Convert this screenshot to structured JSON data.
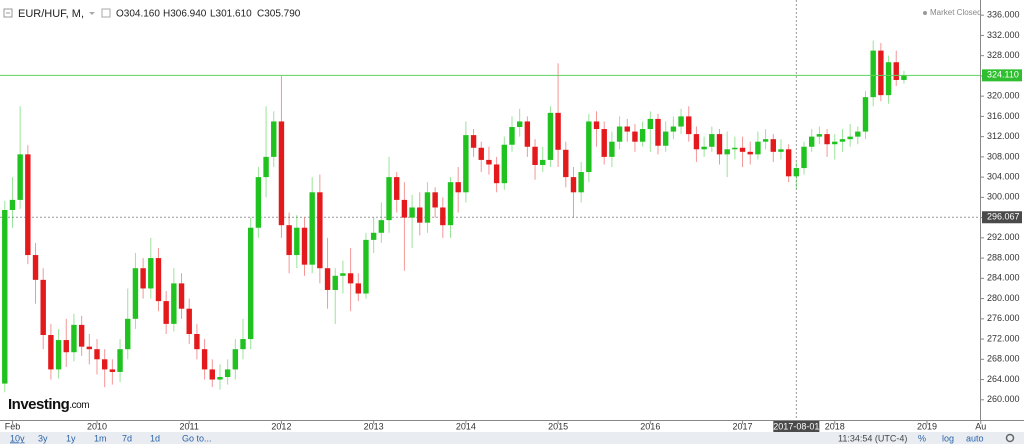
{
  "chart_data": {
    "type": "candlestick",
    "symbol": "EUR/HUF, M,",
    "ohlc_legend": [
      "O304.160",
      "H306.940",
      "L301.610",
      "C305.790"
    ],
    "status": "Market Closed",
    "brand": "Investing",
    "brand_suffix": ".com",
    "up_color": "#1fc21f",
    "down_color": "#e3191b",
    "categories": [
      "2009-01",
      "2009-02",
      "2009-03",
      "2009-04",
      "2009-05",
      "2009-06",
      "2009-07",
      "2009-08",
      "2009-09",
      "2009-10",
      "2009-11",
      "2009-12",
      "2010-01",
      "2010-02",
      "2010-03",
      "2010-04",
      "2010-05",
      "2010-06",
      "2010-07",
      "2010-08",
      "2010-09",
      "2010-10",
      "2010-11",
      "2010-12",
      "2011-01",
      "2011-02",
      "2011-03",
      "2011-04",
      "2011-05",
      "2011-06",
      "2011-07",
      "2011-08",
      "2011-09",
      "2011-10",
      "2011-11",
      "2011-12",
      "2012-01",
      "2012-02",
      "2012-03",
      "2012-04",
      "2012-05",
      "2012-06",
      "2012-07",
      "2012-08",
      "2012-09",
      "2012-10",
      "2012-11",
      "2012-12",
      "2013-01",
      "2013-02",
      "2013-03",
      "2013-04",
      "2013-05",
      "2013-06",
      "2013-07",
      "2013-08",
      "2013-09",
      "2013-10",
      "2013-11",
      "2013-12",
      "2014-01",
      "2014-02",
      "2014-03",
      "2014-04",
      "2014-05",
      "2014-06",
      "2014-07",
      "2014-08",
      "2014-09",
      "2014-10",
      "2014-11",
      "2014-12",
      "2015-01",
      "2015-02",
      "2015-03",
      "2015-04",
      "2015-05",
      "2015-06",
      "2015-07",
      "2015-08",
      "2015-09",
      "2015-10",
      "2015-11",
      "2015-12",
      "2016-01",
      "2016-02",
      "2016-03",
      "2016-04",
      "2016-05",
      "2016-06",
      "2016-07",
      "2016-08",
      "2016-09",
      "2016-10",
      "2016-11",
      "2016-12",
      "2017-01",
      "2017-02",
      "2017-03",
      "2017-04",
      "2017-05",
      "2017-06",
      "2017-07",
      "2017-08",
      "2017-09",
      "2017-10",
      "2017-11",
      "2017-12",
      "2018-01",
      "2018-02",
      "2018-03",
      "2018-04",
      "2018-05",
      "2018-06",
      "2018-07",
      "2018-08",
      "2018-09",
      "2018-10"
    ],
    "open": [
      263.2,
      297.5,
      299.5,
      308.5,
      288.6,
      283.7,
      272.8,
      266.0,
      271.8,
      269.4,
      274.8,
      270.5,
      270.0,
      268.0,
      266.0,
      265.5,
      270.0,
      276.0,
      286.0,
      282.0,
      288.0,
      279.5,
      275.0,
      283.0,
      278.0,
      273.0,
      270.0,
      266.0,
      264.0,
      264.5,
      266.0,
      270.0,
      272.0,
      294.0,
      304.0,
      308.0,
      315.0,
      294.5,
      288.6,
      294.0,
      286.7,
      301.0,
      286.0,
      281.7,
      284.5,
      285.0,
      283.0,
      281.0,
      291.6,
      293.0,
      295.5,
      304.0,
      299.5,
      296.0,
      298.0,
      295.0,
      301.0,
      298.0,
      294.5,
      303.0,
      301.0,
      312.3,
      309.8,
      307.4,
      306.5,
      302.8,
      310.4,
      313.9,
      315.0,
      310.0,
      306.4,
      307.4,
      316.7,
      309.4,
      304.0,
      301.0,
      305.0,
      315.0,
      313.5,
      308.0,
      311.0,
      314.0,
      313.0,
      311.0,
      313.5,
      315.5,
      310.2,
      313.0,
      314.0,
      316.0,
      312.5,
      309.5,
      310.0,
      312.5,
      308.5,
      309.5,
      309.8,
      309.0,
      308.5,
      311.0,
      311.5,
      309.0,
      309.5,
      304.16,
      305.79,
      310.0,
      312.0,
      312.5,
      310.5,
      311.0,
      311.5,
      312.0,
      313.0,
      319.8,
      329.0,
      320.2,
      326.7,
      323.2
    ],
    "high": [
      299.3,
      304.0,
      318.0,
      310.3,
      291.0,
      286.0,
      275.0,
      274.0,
      276.0,
      277.0,
      276.6,
      273.0,
      272.0,
      270.0,
      268.0,
      272.0,
      282.0,
      289.0,
      288.0,
      292.0,
      290.0,
      281.5,
      286.0,
      285.0,
      280.0,
      275.0,
      272.0,
      268.0,
      267.0,
      268.0,
      272.0,
      276.0,
      296.0,
      306.0,
      318.0,
      317.0,
      324.0,
      297.0,
      296.5,
      296.0,
      304.0,
      304.5,
      292.0,
      286.0,
      287.5,
      290.0,
      285.0,
      293.0,
      296.0,
      299.0,
      308.0,
      305.0,
      303.0,
      300.5,
      301.0,
      303.0,
      302.0,
      300.0,
      304.0,
      306.0,
      315.0,
      313.5,
      311.0,
      310.0,
      308.0,
      312.0,
      316.0,
      317.5,
      316.0,
      311.5,
      310.0,
      318.0,
      326.5,
      311.0,
      306.0,
      307.0,
      316.5,
      317.0,
      315.0,
      313.0,
      316.0,
      315.5,
      314.5,
      315.0,
      317.0,
      316.5,
      315.0,
      316.0,
      317.5,
      318.0,
      314.0,
      312.0,
      314.0,
      313.5,
      313.0,
      312.0,
      312.0,
      311.0,
      313.0,
      313.5,
      312.5,
      311.5,
      310.5,
      306.94,
      311.0,
      313.5,
      314.0,
      313.5,
      312.5,
      313.5,
      314.5,
      314.0,
      321.0,
      331.0,
      330.5,
      328.0,
      329.0,
      325.0
    ],
    "low": [
      261.5,
      294.0,
      297.7,
      286.8,
      279.0,
      270.0,
      264.0,
      264.2,
      266.5,
      267.6,
      268.7,
      267.0,
      265.0,
      262.5,
      263.0,
      263.5,
      268.0,
      274.0,
      280.0,
      280.0,
      277.5,
      273.0,
      273.5,
      276.0,
      271.0,
      268.0,
      264.0,
      262.5,
      262.0,
      263.0,
      264.0,
      268.0,
      270.0,
      292.0,
      300.0,
      306.0,
      292.0,
      285.0,
      286.0,
      284.5,
      285.0,
      283.0,
      278.0,
      275.0,
      281.0,
      277.5,
      279.5,
      280.0,
      289.0,
      291.0,
      293.0,
      297.0,
      285.5,
      290.0,
      292.5,
      293.0,
      296.0,
      292.0,
      292.0,
      297.0,
      299.0,
      308.0,
      305.0,
      304.5,
      301.0,
      301.5,
      309.0,
      312.0,
      308.0,
      303.5,
      305.0,
      306.0,
      306.0,
      302.0,
      296.0,
      299.0,
      303.0,
      310.0,
      306.5,
      306.0,
      309.5,
      311.0,
      309.0,
      310.0,
      309.0,
      308.5,
      309.0,
      311.5,
      312.5,
      311.0,
      307.0,
      308.0,
      309.0,
      306.5,
      304.0,
      307.5,
      306.0,
      306.5,
      307.5,
      309.5,
      307.0,
      307.5,
      303.0,
      301.61,
      304.5,
      309.0,
      310.5,
      308.0,
      307.5,
      309.0,
      310.0,
      310.5,
      311.5,
      318.0,
      319.0,
      318.5,
      322.0,
      322.5
    ],
    "close": [
      297.5,
      299.5,
      308.5,
      288.6,
      283.7,
      272.8,
      266.0,
      271.8,
      269.4,
      274.8,
      270.5,
      270.0,
      268.0,
      266.0,
      265.5,
      270.0,
      276.0,
      286.0,
      282.0,
      288.0,
      279.5,
      275.0,
      283.0,
      278.0,
      273.0,
      270.0,
      266.0,
      264.0,
      264.5,
      266.0,
      270.0,
      272.0,
      294.0,
      304.0,
      308.0,
      315.0,
      294.5,
      288.6,
      294.0,
      286.7,
      301.0,
      286.0,
      281.7,
      284.5,
      285.0,
      283.0,
      281.0,
      291.6,
      293.0,
      295.5,
      304.0,
      299.5,
      296.0,
      298.0,
      295.0,
      301.0,
      298.0,
      294.5,
      303.0,
      301.0,
      312.3,
      309.8,
      307.4,
      306.5,
      302.8,
      310.4,
      313.9,
      315.0,
      310.0,
      306.4,
      307.4,
      316.7,
      309.4,
      304.0,
      301.0,
      305.0,
      315.0,
      313.5,
      308.0,
      311.0,
      314.0,
      313.0,
      311.0,
      313.5,
      315.5,
      310.2,
      313.0,
      314.0,
      316.0,
      312.5,
      309.5,
      310.0,
      312.5,
      308.5,
      309.5,
      309.8,
      309.0,
      308.5,
      311.0,
      311.5,
      309.0,
      309.5,
      304.16,
      305.79,
      310.0,
      312.0,
      312.5,
      310.5,
      311.0,
      311.5,
      312.0,
      313.0,
      319.8,
      329.0,
      320.2,
      326.7,
      323.2,
      324.1
    ],
    "ylim": [
      256.4,
      339.0
    ],
    "yticks": [
      {
        "value": 260,
        "label": "260.000"
      },
      {
        "value": 264,
        "label": "264.000"
      },
      {
        "value": 268,
        "label": "268.000"
      },
      {
        "value": 272,
        "label": "272.000"
      },
      {
        "value": 276,
        "label": "276.000"
      },
      {
        "value": 280,
        "label": "280.000"
      },
      {
        "value": 284,
        "label": "284.000"
      },
      {
        "value": 288,
        "label": "288.000"
      },
      {
        "value": 292,
        "label": "292.000"
      },
      {
        "value": 296,
        "label": "296.000"
      },
      {
        "value": 300,
        "label": "300.000"
      },
      {
        "value": 304,
        "label": "304.000"
      },
      {
        "value": 308,
        "label": "308.000"
      },
      {
        "value": 312,
        "label": "312.000"
      },
      {
        "value": 316,
        "label": "316.000"
      },
      {
        "value": 320,
        "label": "320.000"
      },
      {
        "value": 324,
        "label": "324.000"
      },
      {
        "value": 328,
        "label": "328.000"
      },
      {
        "value": 332,
        "label": "332.000"
      },
      {
        "value": 336,
        "label": "336.000"
      }
    ],
    "xticks": [
      {
        "value": 1,
        "label": "Feb"
      },
      {
        "value": 12,
        "label": "2010"
      },
      {
        "value": 24,
        "label": "2011"
      },
      {
        "value": 36,
        "label": "2012"
      },
      {
        "value": 48,
        "label": "2013"
      },
      {
        "value": 60,
        "label": "2014"
      },
      {
        "value": 72,
        "label": "2015"
      },
      {
        "value": 84,
        "label": "2016"
      },
      {
        "value": 96,
        "label": "2017"
      },
      {
        "value": 108,
        "label": "2018"
      },
      {
        "value": 120,
        "label": "2019"
      },
      {
        "value": 127,
        "label": "Au"
      }
    ],
    "last_price": {
      "value": 324.11,
      "label": "324.110"
    },
    "crosshair": {
      "value": 296.067,
      "label": "296.067",
      "x_label": "2017-08-01"
    }
  },
  "toolbar": {
    "ranges": [
      "10y",
      "3y",
      "1y",
      "1m",
      "7d",
      "1d"
    ],
    "go_to": "Go to...",
    "clock": "11:34:54 (UTC-4)",
    "options": [
      "%",
      "log",
      "auto"
    ]
  }
}
